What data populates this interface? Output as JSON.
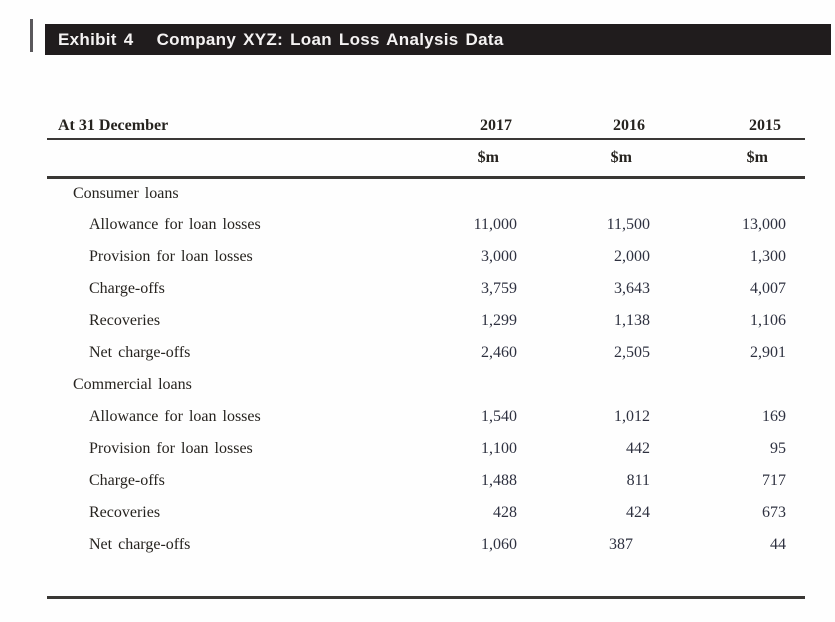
{
  "exhibit": {
    "label": "Exhibit 4",
    "title": "Company XYZ: Loan Loss Analysis Data"
  },
  "table": {
    "header": {
      "row_label": "At 31 December",
      "years": [
        "2017",
        "2016",
        "2015"
      ],
      "unit": "$m"
    },
    "sections": [
      {
        "label": "Consumer loans",
        "rows": [
          {
            "label": "Allowance for loan losses",
            "values": [
              "11,000",
              "11,500",
              "13,000"
            ]
          },
          {
            "label": "Provision for loan losses",
            "values": [
              "3,000",
              "2,000",
              "1,300"
            ]
          },
          {
            "label": "Charge-offs",
            "values": [
              "3,759",
              "3,643",
              "4,007"
            ]
          },
          {
            "label": "Recoveries",
            "values": [
              "1,299",
              "1,138",
              "1,106"
            ]
          },
          {
            "label": "Net charge-offs",
            "values": [
              "2,460",
              "2,505",
              "2,901"
            ]
          }
        ]
      },
      {
        "label": "Commercial loans",
        "rows": [
          {
            "label": "Allowance for loan losses",
            "values": [
              "1,540",
              "1,012",
              "169"
            ]
          },
          {
            "label": "Provision for loan losses",
            "values": [
              "1,100",
              "442",
              "95"
            ]
          },
          {
            "label": "Charge-offs",
            "values": [
              "1,488",
              "811",
              "717"
            ]
          },
          {
            "label": "Recoveries",
            "values": [
              "428",
              "424",
              "673"
            ]
          },
          {
            "label": "Net charge-offs",
            "values": [
              "1,060",
              "387",
              "44"
            ]
          }
        ]
      }
    ]
  },
  "colors": {
    "bar_bg": "#201c1d",
    "bar_text": "#f4f2f2",
    "text": "#26231f",
    "number_text": "#2e3140",
    "rule_line": "#393734"
  }
}
